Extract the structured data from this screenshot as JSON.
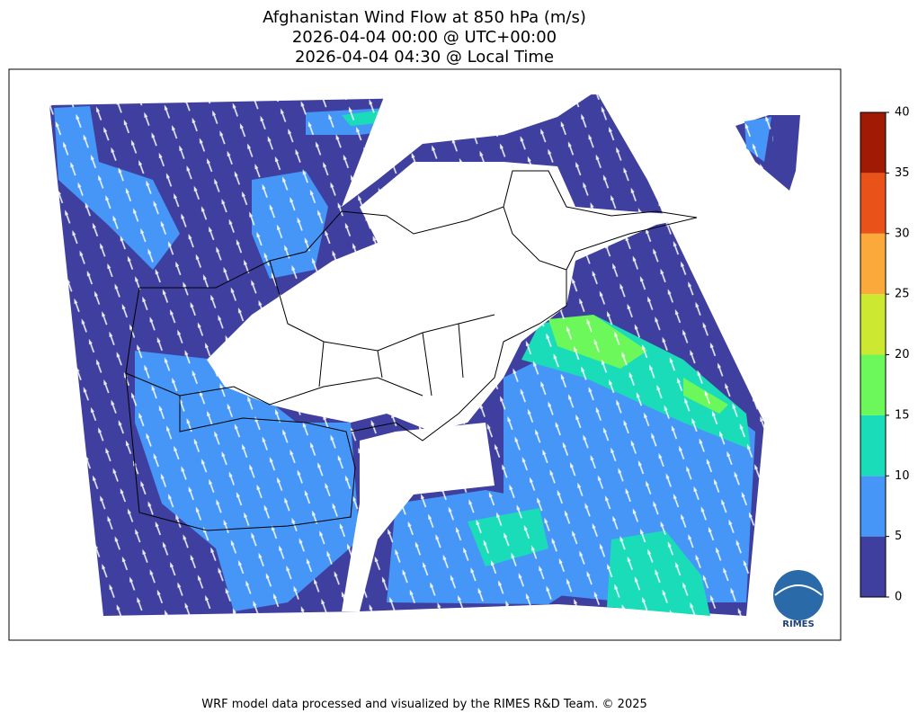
{
  "title": [
    "Afghanistan Wind Flow at 850 hPa (m/s)",
    "2026-04-04 00:00 @ UTC+00:00",
    "2026-04-04 04:30 @ Local Time"
  ],
  "colorbar": {
    "lim": [
      0,
      40
    ],
    "ticks": [
      0,
      5,
      10,
      15,
      20,
      25,
      30,
      35,
      40
    ],
    "colors": [
      "#3f3f9f",
      "#4596f7",
      "#1bdcb8",
      "#6cf85a",
      "#cde831",
      "#fca93b",
      "#e9531a",
      "#a11a04"
    ]
  },
  "logo": "RIMES",
  "footer": "WRF model data processed and visualized by the RIMES R&D Team. © 2025"
}
